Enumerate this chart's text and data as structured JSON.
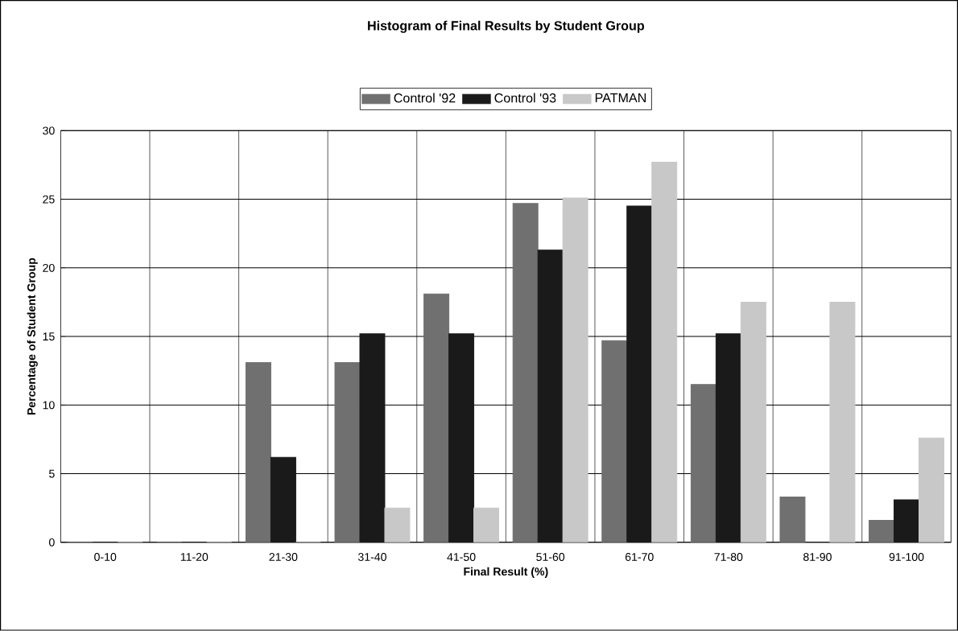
{
  "chart_data": {
    "type": "bar",
    "title": "Histogram of Final Results by Student Group",
    "xlabel": "Final Result (%)",
    "ylabel": "Percentage of Student Group",
    "categories": [
      "0-10",
      "11-20",
      "21-30",
      "31-40",
      "41-50",
      "51-60",
      "61-70",
      "71-80",
      "81-90",
      "91-100"
    ],
    "series": [
      {
        "name": "Control '92",
        "color": "#707070",
        "values": [
          0,
          0,
          13.1,
          13.1,
          18.1,
          24.7,
          14.7,
          11.5,
          3.3,
          1.6
        ]
      },
      {
        "name": "Control '93",
        "color": "#1a1a1a",
        "values": [
          0,
          0,
          6.2,
          15.2,
          15.2,
          21.3,
          24.5,
          15.2,
          0,
          3.1
        ]
      },
      {
        "name": "PATMAN",
        "color": "#c8c8c8",
        "values": [
          0,
          0,
          0,
          2.5,
          2.5,
          25.1,
          27.7,
          17.5,
          17.5,
          7.6
        ]
      }
    ],
    "ylim": [
      0,
      30
    ],
    "yticks": [
      0,
      5,
      10,
      15,
      20,
      25,
      30
    ],
    "grid": true,
    "legend": "top"
  }
}
